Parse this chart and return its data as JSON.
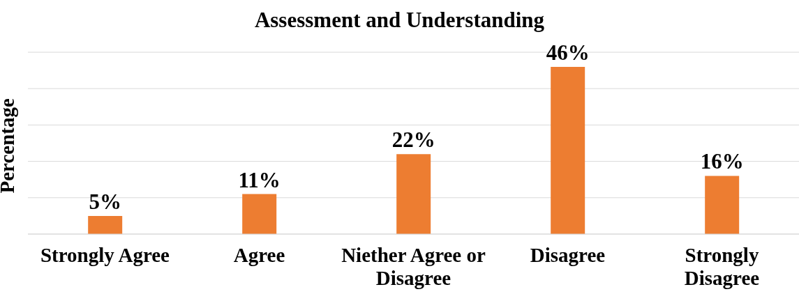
{
  "chart_data": {
    "type": "bar",
    "title": "Assessment and Understanding",
    "ylabel": "Percentage",
    "categories": [
      "Strongly Agree",
      "Agree",
      "Niether Agree or Disagree",
      "Disagree",
      "Strongly Disagree"
    ],
    "values": [
      5,
      11,
      22,
      46,
      16
    ],
    "value_labels": [
      "5%",
      "11%",
      "22%",
      "46%",
      "16%"
    ],
    "color": "#ed7d31",
    "ylim": [
      0,
      50
    ],
    "tick_labels": "x",
    "grid": "y",
    "legend": false
  }
}
